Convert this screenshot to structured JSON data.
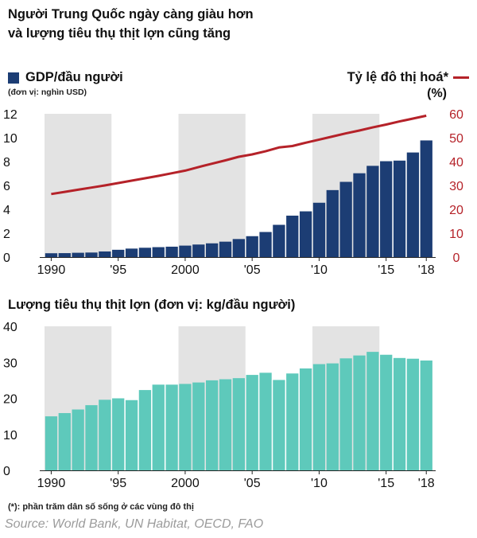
{
  "title_line1": "Người Trung Quốc ngày càng giàu hơn",
  "title_line2": "và lượng tiêu thụ thịt lợn cũng tăng",
  "legend_left_label": "GDP/đầu người",
  "legend_left_unit": "(đơn vị: nghìn USD)",
  "legend_right_label": "Tỷ lệ đô thị hoá*",
  "legend_right_unit": "(%)",
  "bottom_title": "Lượng tiêu thụ thịt lợn (đơn vị: kg/đầu người)",
  "footnote": "(*): phần trăm dân số sống ở các vùng đô thị",
  "source": "Source: World Bank, UN Habitat, OECD, FAO",
  "colors": {
    "gdp_bar": "#1c3d74",
    "urban_line": "#b52229",
    "pork_bar": "#5ec9bb",
    "shade": "#e3e3e3",
    "right_axis": "#b52229"
  },
  "chart_data": [
    {
      "type": "bar",
      "title": "",
      "series": [
        {
          "name": "GDP/đầu người",
          "axis": "left",
          "values": [
            0.32,
            0.33,
            0.36,
            0.38,
            0.47,
            0.61,
            0.71,
            0.78,
            0.83,
            0.87,
            0.96,
            1.05,
            1.15,
            1.29,
            1.51,
            1.75,
            2.1,
            2.7,
            3.47,
            3.83,
            4.55,
            5.61,
            6.3,
            7.02,
            7.64,
            8.03,
            8.08,
            8.76,
            9.77
          ]
        },
        {
          "name": "Tỷ lệ đô thị hoá*",
          "axis": "right",
          "type": "line",
          "values": [
            26.4,
            27.3,
            28.2,
            29.1,
            30.0,
            31.0,
            32.0,
            33.0,
            34.0,
            35.1,
            36.2,
            37.7,
            39.1,
            40.5,
            42.0,
            43.0,
            44.3,
            45.9,
            46.5,
            47.9,
            49.2,
            50.5,
            51.8,
            53.0,
            54.3,
            55.5,
            56.8,
            58.0,
            59.2
          ]
        }
      ],
      "x_labels": [
        "1990",
        "'95",
        "2000",
        "'05",
        "'10",
        "'15",
        "'18"
      ],
      "y_left_ticks": [
        "0",
        "2",
        "4",
        "6",
        "8",
        "10",
        "12"
      ],
      "y_right_ticks": [
        "0",
        "10",
        "20",
        "30",
        "40",
        "50",
        "60"
      ],
      "ylim_left": [
        0,
        12
      ],
      "ylim_right": [
        0,
        60
      ],
      "shaded_ranges": [
        [
          1990,
          1994
        ],
        [
          2000,
          2004
        ],
        [
          2010,
          2014
        ]
      ]
    },
    {
      "type": "bar",
      "title": "Lượng tiêu thụ thịt lợn (đơn vị: kg/đầu người)",
      "x": [
        1990,
        1991,
        1992,
        1993,
        1994,
        1995,
        1996,
        1997,
        1998,
        1999,
        2000,
        2001,
        2002,
        2003,
        2004,
        2005,
        2006,
        2007,
        2008,
        2009,
        2010,
        2011,
        2012,
        2013,
        2014,
        2015,
        2016,
        2017,
        2018
      ],
      "values": [
        15.0,
        15.9,
        16.9,
        18.1,
        19.6,
        20.0,
        19.5,
        22.3,
        23.8,
        23.8,
        24.0,
        24.4,
        25.0,
        25.3,
        25.6,
        26.5,
        27.1,
        25.1,
        26.9,
        28.3,
        29.5,
        29.7,
        31.1,
        31.9,
        32.9,
        32.1,
        31.2,
        31.0,
        30.5
      ],
      "x_labels": [
        "1990",
        "'95",
        "2000",
        "'05",
        "'10",
        "'15",
        "'18"
      ],
      "y_ticks": [
        "0",
        "10",
        "20",
        "30",
        "40"
      ],
      "ylim": [
        0,
        40
      ],
      "shaded_ranges": [
        [
          1990,
          1994
        ],
        [
          2000,
          2004
        ],
        [
          2010,
          2014
        ]
      ]
    }
  ]
}
